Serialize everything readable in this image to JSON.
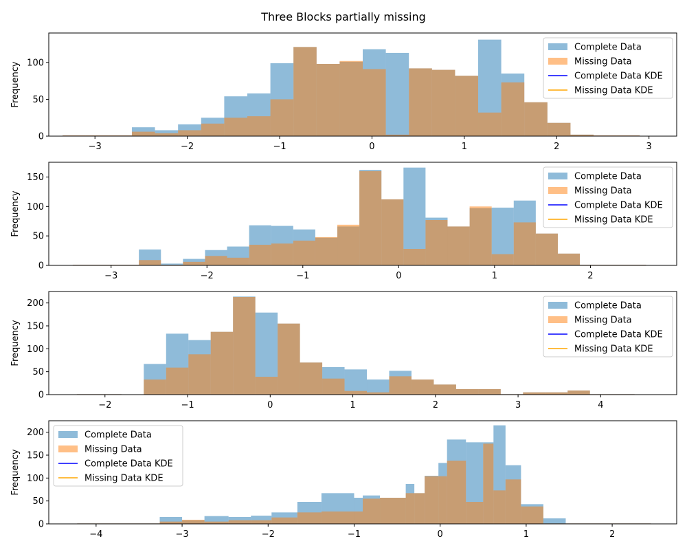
{
  "title": "Three Blocks partially missing",
  "colors": {
    "complete": "#1f77b4",
    "missing": "#ff7f0e",
    "complete_kde": "#0000ff",
    "missing_kde": "#ffa500"
  },
  "legend_labels": [
    "Complete Data",
    "Missing Data",
    "Complete Data KDE",
    "Missing Data KDE"
  ],
  "chart_data": [
    {
      "type": "bar",
      "ylabel": "Frequency",
      "xlim": [
        -3.5,
        3.3
      ],
      "ylim": [
        0,
        140
      ],
      "xticks": [
        -3,
        -2,
        -1,
        0,
        1,
        2,
        3
      ],
      "yticks": [
        0,
        50,
        100
      ],
      "legend_position": "top-right",
      "bin_edges": [
        -3.35,
        -3.1,
        -2.85,
        -2.6,
        -2.35,
        -2.1,
        -1.85,
        -1.6,
        -1.35,
        -1.1,
        -0.85,
        -0.6,
        -0.35,
        -0.1,
        0.15,
        0.4,
        0.65,
        0.9,
        1.15,
        1.4,
        1.65,
        1.9,
        2.15,
        2.4,
        2.65,
        2.9
      ],
      "series": [
        {
          "name": "Complete Data",
          "values": [
            1,
            1,
            1,
            12,
            8,
            16,
            25,
            54,
            58,
            99,
            121,
            98,
            101,
            118,
            113,
            92,
            90,
            82,
            131,
            85,
            46,
            18,
            2,
            1,
            1
          ]
        },
        {
          "name": "Missing Data",
          "values": [
            1,
            1,
            1,
            6,
            4,
            8,
            17,
            25,
            27,
            50,
            121,
            98,
            102,
            91,
            2,
            92,
            90,
            82,
            32,
            73,
            46,
            18,
            2,
            1,
            1
          ]
        }
      ]
    },
    {
      "type": "bar",
      "ylabel": "Frequency",
      "xlim": [
        -3.65,
        2.9
      ],
      "ylim": [
        0,
        175
      ],
      "xticks": [
        -3,
        -2,
        -1,
        0,
        1,
        2
      ],
      "yticks": [
        0,
        50,
        100,
        150
      ],
      "legend_position": "top-right",
      "bin_edges": [
        -3.4,
        -3.17,
        -2.94,
        -2.71,
        -2.48,
        -2.25,
        -2.02,
        -1.79,
        -1.56,
        -1.33,
        -1.1,
        -0.87,
        -0.64,
        -0.41,
        -0.18,
        0.05,
        0.28,
        0.51,
        0.74,
        0.97,
        1.2,
        1.43,
        1.66,
        1.89,
        2.12,
        2.35,
        2.58
      ],
      "series": [
        {
          "name": "Complete Data",
          "values": [
            1,
            1,
            1,
            27,
            3,
            11,
            26,
            32,
            68,
            67,
            61,
            47,
            66,
            162,
            112,
            166,
            81,
            66,
            97,
            98,
            110,
            54,
            20,
            1,
            1,
            1
          ]
        },
        {
          "name": "Missing Data",
          "values": [
            1,
            1,
            1,
            9,
            1,
            6,
            16,
            13,
            35,
            37,
            42,
            48,
            69,
            160,
            112,
            28,
            77,
            66,
            100,
            19,
            73,
            54,
            20,
            1,
            1,
            1
          ]
        }
      ]
    },
    {
      "type": "bar",
      "ylabel": "Frequency",
      "xlim": [
        -2.68,
        4.92
      ],
      "ylim": [
        0,
        225
      ],
      "xticks": [
        -2,
        -1,
        0,
        1,
        2,
        3,
        4
      ],
      "yticks": [
        0,
        50,
        100,
        150,
        200
      ],
      "legend_position": "top-right",
      "bin_edges": [
        -2.34,
        -2.07,
        -1.8,
        -1.53,
        -1.26,
        -0.99,
        -0.72,
        -0.45,
        -0.18,
        0.09,
        0.36,
        0.63,
        0.9,
        1.17,
        1.44,
        1.71,
        1.98,
        2.25,
        2.52,
        2.79,
        3.06,
        3.33,
        3.6,
        3.87,
        4.14,
        4.41
      ],
      "series": [
        {
          "name": "Complete Data",
          "values": [
            1,
            1,
            0,
            67,
            133,
            119,
            137,
            214,
            179,
            155,
            70,
            60,
            55,
            33,
            52,
            33,
            22,
            12,
            12,
            1,
            5,
            5,
            9,
            1,
            1
          ]
        },
        {
          "name": "Missing Data",
          "values": [
            1,
            1,
            0,
            33,
            59,
            88,
            137,
            213,
            39,
            155,
            70,
            35,
            8,
            5,
            40,
            33,
            22,
            12,
            12,
            1,
            5,
            5,
            9,
            1,
            1
          ]
        }
      ]
    },
    {
      "type": "bar",
      "ylabel": "Frequency",
      "xlim": [
        -4.55,
        2.75
      ],
      "ylim": [
        0,
        225
      ],
      "xticks": [
        -4,
        -3,
        -2,
        -1,
        0,
        1,
        2
      ],
      "yticks": [
        0,
        50,
        100,
        150,
        200
      ],
      "legend_position": "top-left",
      "bin_edges": [
        -4.22,
        -3.98,
        -3.74,
        -3.5,
        -3.26,
        -3.0,
        -2.74,
        -2.46,
        -2.2,
        -1.96,
        -1.66,
        -1.38,
        -1.0,
        -0.9,
        -0.7,
        -0.4,
        -0.3,
        -0.18,
        -0.02,
        0.08,
        0.3,
        0.5,
        0.62,
        0.76,
        0.94,
        1.2,
        1.46,
        1.7,
        1.95,
        2.2,
        2.45
      ],
      "series": [
        {
          "name": "Complete Data",
          "values": [
            1,
            1,
            1,
            1,
            15,
            8,
            17,
            15,
            18,
            25,
            48,
            67,
            57,
            62,
            57,
            87,
            67,
            105,
            133,
            184,
            178,
            178,
            215,
            128,
            43,
            12,
            1,
            1,
            1,
            1
          ]
        },
        {
          "name": "Missing Data",
          "values": [
            1,
            1,
            1,
            1,
            5,
            9,
            5,
            8,
            8,
            14,
            25,
            27,
            27,
            55,
            57,
            67,
            67,
            104,
            104,
            138,
            48,
            175,
            73,
            97,
            38,
            1,
            1,
            1,
            1,
            1
          ]
        }
      ]
    }
  ]
}
